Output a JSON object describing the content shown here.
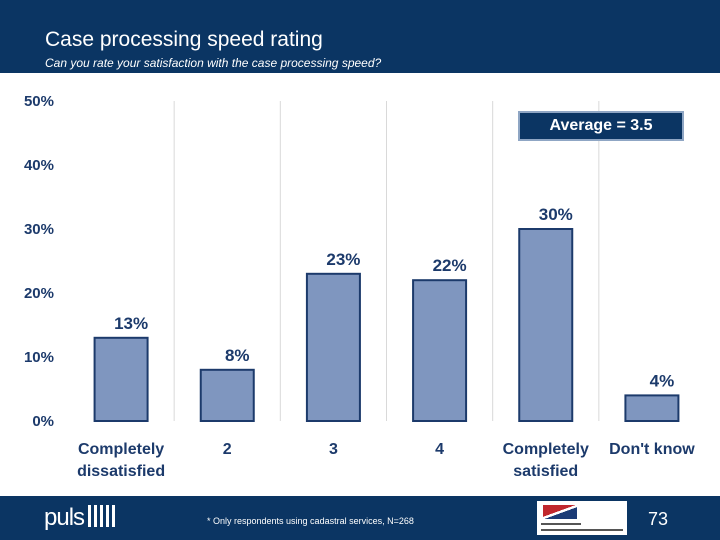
{
  "header": {
    "title": "Case processing speed rating",
    "subtitle": "Can you rate your satisfaction with the case processing speed?"
  },
  "chart_data": {
    "type": "bar",
    "categories": [
      [
        "Completely",
        "dissatisfied"
      ],
      [
        "2"
      ],
      [
        "3"
      ],
      [
        "4"
      ],
      [
        "Completely",
        "satisfied"
      ],
      [
        "Don't know"
      ]
    ],
    "values": [
      13,
      8,
      23,
      22,
      30,
      4
    ],
    "data_labels": [
      "13%",
      "8%",
      "23%",
      "22%",
      "30%",
      "4%"
    ],
    "yticks": [
      "0%",
      "10%",
      "20%",
      "30%",
      "40%",
      "50%"
    ],
    "ylim": [
      0,
      50
    ],
    "bar_color": "#7f96bf",
    "bar_edge_color": "#1c3a6b",
    "grid": true
  },
  "annotation": {
    "average": "Average = 3.5"
  },
  "footer": {
    "logo_text": "puls",
    "note": "* Only respondents using cadastral services, N=268",
    "page_number": "73"
  },
  "colors": {
    "navy": "#0b3563",
    "label": "#1c3a6b"
  }
}
